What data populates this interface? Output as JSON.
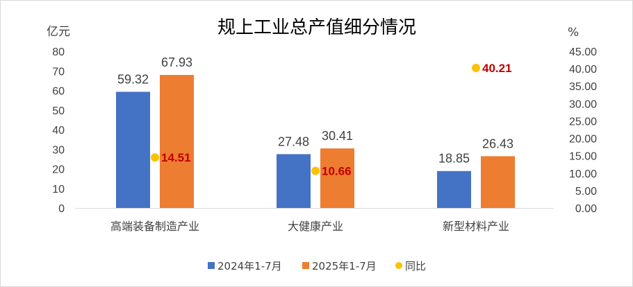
{
  "chart_data": {
    "type": "bar",
    "title": "规上工业总产值细分情况",
    "left_axis_unit": "亿元",
    "right_axis_unit": "%",
    "categories": [
      "高端装备制造产业",
      "大健康产业",
      "新型材料产业"
    ],
    "series": [
      {
        "name": "2024年1-7月",
        "type": "bar",
        "axis": "left",
        "color": "#4472C4",
        "values": [
          59.32,
          27.48,
          18.85
        ],
        "labels": [
          "59.32",
          "27.48",
          "18.85"
        ]
      },
      {
        "name": "2025年1-7月",
        "type": "bar",
        "axis": "left",
        "color": "#ED7D31",
        "values": [
          67.93,
          30.41,
          26.43
        ],
        "labels": [
          "67.93",
          "30.41",
          "26.43"
        ]
      },
      {
        "name": "同比",
        "type": "scatter",
        "axis": "right",
        "color": "#FFC000",
        "label_color": "#C00000",
        "values": [
          14.51,
          10.66,
          40.21
        ],
        "labels": [
          "14.51",
          "10.66",
          "40.21"
        ]
      }
    ],
    "ylim": [
      0,
      80
    ],
    "y_ticks": [
      "0",
      "10",
      "20",
      "30",
      "40",
      "50",
      "60",
      "70",
      "80"
    ],
    "y2lim": [
      0,
      45
    ],
    "y2_ticks": [
      "0.00",
      "5.00",
      "10.00",
      "15.00",
      "20.00",
      "25.00",
      "30.00",
      "35.00",
      "40.00",
      "45.00"
    ],
    "grid": false,
    "legend_position": "bottom"
  }
}
